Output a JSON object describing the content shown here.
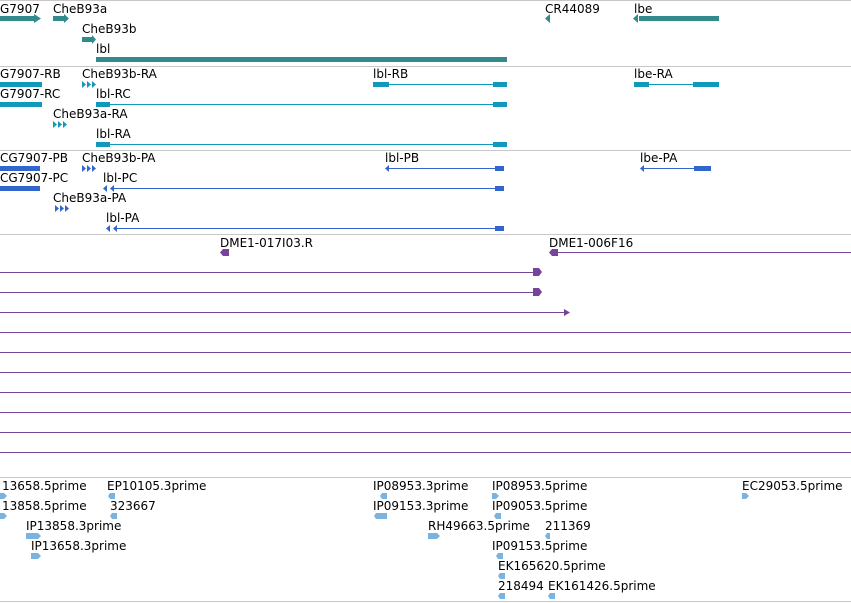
{
  "colors": {
    "gene": "#338a8a",
    "mrna": "#1199bb",
    "protein": "#3366cc",
    "est": "#774499",
    "read": "#7ab3e0",
    "separator": "#c8c8c8"
  },
  "gene_track": {
    "labels": [
      "G7907",
      "CheB93a",
      "CheB93b",
      "lbl",
      "CR44089",
      "lbe"
    ]
  },
  "mrna_track": {
    "labels": [
      "G7907-RB",
      "CheB93b-RA",
      "lbl-RB",
      "lbe-RA",
      "G7907-RC",
      "lbl-RC",
      "CheB93a-RA",
      "lbl-RA"
    ]
  },
  "protein_track": {
    "labels": [
      "CG7907-PB",
      "CheB93b-PA",
      "lbl-PB",
      "lbe-PA",
      "CG7907-PC",
      "lbl-PC",
      "CheB93a-PA",
      "lbl-PA"
    ]
  },
  "est_track": {
    "labels": [
      "DME1-017I03.R",
      "DME1-006F16"
    ]
  },
  "read_track": {
    "labels": [
      "13658.5prime",
      "EP10105.3prime",
      "IP08953.3prime",
      "IP08953.5prime",
      "EC29053.5prime",
      "13858.5prime",
      "323667",
      "IP09153.3prime",
      "IP09053.5prime",
      "IP13858.3prime",
      "RH49663.5prime",
      "211369",
      "IP13658.3prime",
      "IP09153.5prime",
      "EK165620.5prime",
      "218494",
      "EK161426.5prime"
    ]
  }
}
